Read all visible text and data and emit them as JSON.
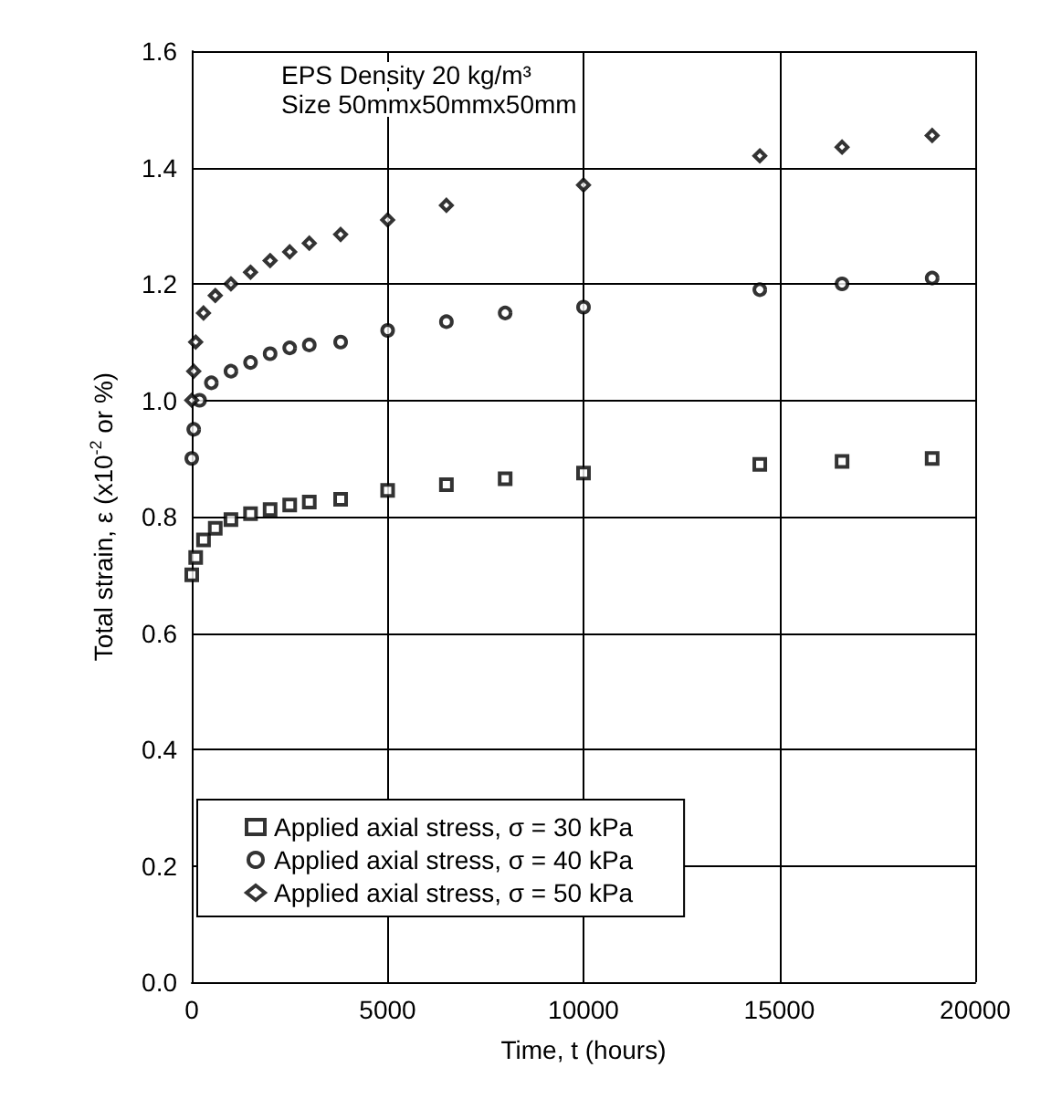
{
  "chart_data": {
    "type": "scatter",
    "xlabel": "Time, t (hours)",
    "ylabel": "Total strain, ε (x10$^{-2}$ or %)",
    "annotations": [
      "EPS Density 20 kg/m³",
      "Size 50mmx50mmx50mm"
    ],
    "xlim": [
      0,
      20000
    ],
    "xticks": [
      0,
      5000,
      10000,
      15000,
      20000
    ],
    "ylim": [
      0,
      1.6
    ],
    "yticks": [
      {
        "value": 0,
        "label": "0.0"
      },
      {
        "value": 0.2,
        "label": "0.2"
      },
      {
        "value": 0.4,
        "label": "0.4"
      },
      {
        "value": 0.6,
        "label": "0.6"
      },
      {
        "value": 0.8,
        "label": "0.8"
      },
      {
        "value": 1,
        "label": "1.0"
      },
      {
        "value": 1.2,
        "label": "1.2"
      },
      {
        "value": 1.4,
        "label": "1.4"
      },
      {
        "value": 1.6,
        "label": "1.6"
      }
    ],
    "grid": true,
    "legend": "bottom left",
    "series": [
      {
        "name": "Applied axial stress, σ = 30 kPa",
        "color": "#000000",
        "marker": "square",
        "x": [
          0,
          100,
          300,
          600,
          1000,
          1500,
          2000,
          2500,
          3000,
          3800,
          5000,
          6500,
          8000,
          10000,
          14500,
          16600,
          18900
        ],
        "values": [
          0.7,
          0.73,
          0.76,
          0.78,
          0.795,
          0.805,
          0.812,
          0.82,
          0.825,
          0.83,
          0.845,
          0.855,
          0.865,
          0.875,
          0.89,
          0.895,
          0.9
        ]
      },
      {
        "name": "Applied axial stress, σ = 40 kPa",
        "color": "#000000",
        "marker": "circle",
        "x": [
          0,
          50,
          200,
          500,
          1000,
          1500,
          2000,
          2500,
          3000,
          3800,
          5000,
          6500,
          8000,
          10000,
          14500,
          16600,
          18900
        ],
        "values": [
          0.9,
          0.95,
          1.0,
          1.03,
          1.05,
          1.065,
          1.08,
          1.09,
          1.095,
          1.1,
          1.12,
          1.135,
          1.15,
          1.16,
          1.19,
          1.2,
          1.21
        ]
      },
      {
        "name": "Applied axial stress, σ = 50 kPa",
        "color": "#000000",
        "marker": "diamond",
        "x": [
          0,
          50,
          100,
          300,
          600,
          1000,
          1500,
          2000,
          2500,
          3000,
          3800,
          5000,
          6500,
          10000,
          14500,
          16600,
          18900
        ],
        "values": [
          1.0,
          1.05,
          1.1,
          1.15,
          1.18,
          1.2,
          1.22,
          1.24,
          1.255,
          1.27,
          1.285,
          1.31,
          1.335,
          1.37,
          1.42,
          1.435,
          1.455
        ]
      }
    ]
  }
}
